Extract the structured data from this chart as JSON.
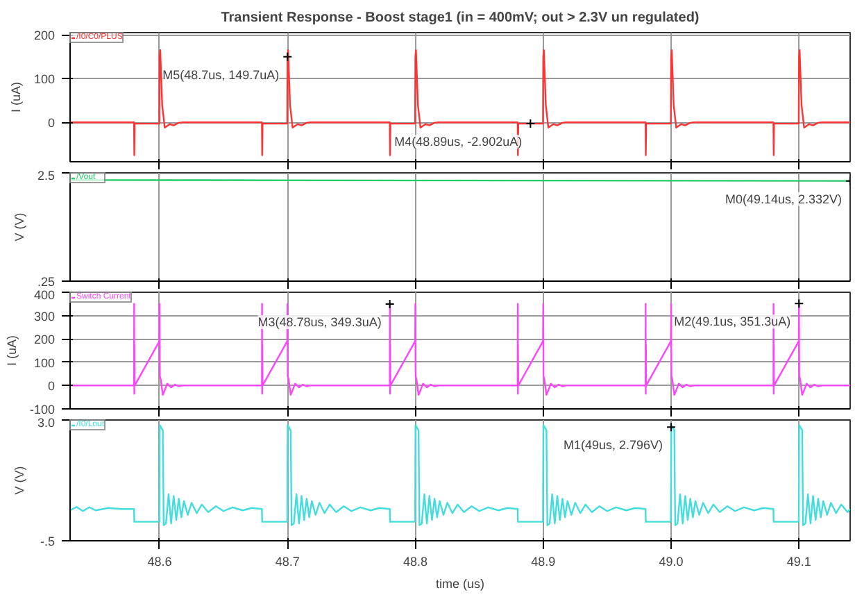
{
  "chart_data": [
    {
      "type": "line",
      "title": "Transient Response - Boost stage1 (in = 400mV; out > 2.3V un regulated)",
      "ylabel": "I (uA)",
      "xlim": [
        48.53,
        49.14
      ],
      "xticks": [
        48.6,
        48.7,
        48.8,
        48.9,
        49.0,
        49.1
      ],
      "ylim": [
        -90,
        205
      ],
      "yticks": [
        0,
        100,
        200
      ],
      "tick_labels": "y",
      "grid": true,
      "legend": "top left",
      "annotations": [
        {
          "text": "M5(48.7us, 149.7uA)",
          "x": 48.7,
          "y": 149.7
        },
        {
          "text": "M4(48.89us, -2.902uA)",
          "x": 48.89,
          "y": -2.902
        }
      ],
      "series": [
        {
          "name": "/I0/C0/PLUS",
          "color": "#ff3333",
          "x": [
            48.53,
            48.58,
            48.5802,
            48.5805,
            48.5998,
            48.6,
            48.6005,
            48.602,
            48.604,
            48.608,
            48.611,
            48.615,
            48.618,
            48.68,
            48.6802,
            48.6805,
            48.6998,
            48.7,
            48.7005,
            48.702,
            48.704,
            48.708,
            48.711,
            48.715,
            48.718,
            48.78,
            48.7802,
            48.7805,
            48.7998,
            48.8,
            48.8005,
            48.802,
            48.804,
            48.808,
            48.811,
            48.815,
            48.818,
            48.88,
            48.8802,
            48.8805,
            48.8998,
            48.9,
            48.9005,
            48.902,
            48.904,
            48.908,
            48.911,
            48.915,
            48.918,
            48.98,
            48.9802,
            48.9805,
            48.9998,
            49.0,
            49.0005,
            49.002,
            49.004,
            49.008,
            49.011,
            49.015,
            49.018,
            49.08,
            49.0802,
            49.0805,
            49.0998,
            49.1,
            49.1005,
            49.102,
            49.104,
            49.108,
            49.111,
            49.115,
            49.118,
            49.14
          ],
          "values": [
            0,
            0,
            -75,
            -3,
            -3,
            150,
            165,
            40,
            -12,
            -4,
            -7,
            -1,
            0,
            0,
            -75,
            -3,
            -3,
            150,
            165,
            40,
            -12,
            -4,
            -7,
            -1,
            0,
            0,
            -75,
            -3,
            -3,
            150,
            165,
            40,
            -12,
            -4,
            -7,
            -1,
            0,
            0,
            -75,
            -3,
            -3,
            150,
            165,
            40,
            -12,
            -4,
            -7,
            -1,
            0,
            0,
            -75,
            -3,
            -3,
            150,
            165,
            40,
            -12,
            -4,
            -7,
            -1,
            0,
            0,
            -75,
            -3,
            -3,
            150,
            165,
            40,
            -12,
            -4,
            -7,
            -1,
            0,
            0
          ]
        }
      ]
    },
    {
      "type": "line",
      "ylabel": "V (V)",
      "xlim": [
        48.53,
        49.14
      ],
      "xticks": [
        48.6,
        48.7,
        48.8,
        48.9,
        49.0,
        49.1
      ],
      "ylim": [
        0.25,
        2.5
      ],
      "yticks": [
        2.5,
        {
          "value": 0.25,
          "label": ".25"
        }
      ],
      "tick_labels": "y",
      "grid": true,
      "legend": "top left",
      "annotations": [
        {
          "text": "M0(49.14us, 2.332V)",
          "x": 49.14,
          "y": 2.332
        }
      ],
      "series": [
        {
          "name": "/Vout",
          "color": "#22cc66",
          "x": [
            48.53,
            49.14
          ],
          "values": [
            2.35,
            2.332
          ]
        }
      ]
    },
    {
      "type": "line",
      "ylabel": "I (uA)",
      "xlim": [
        48.53,
        49.14
      ],
      "xticks": [
        48.6,
        48.7,
        48.8,
        48.9,
        49.0,
        49.1
      ],
      "ylim": [
        -100,
        400
      ],
      "yticks": [
        -100,
        0,
        100,
        200,
        300,
        400
      ],
      "tick_labels": "y",
      "grid": true,
      "legend": "top left",
      "annotations": [
        {
          "text": "M3(48.78us, 349.3uA)",
          "x": 48.78,
          "y": 349.3
        },
        {
          "text": "M2(49.1us, 351.3uA)",
          "x": 49.1,
          "y": 351.3
        }
      ],
      "series": [
        {
          "name": "Switch Current",
          "color": "#ff44ff",
          "x": [
            48.53,
            48.58,
            48.5801,
            48.5802,
            48.5803,
            48.5805,
            48.5998,
            48.6,
            48.6002,
            48.6008,
            48.6025,
            48.606,
            48.609,
            48.612,
            48.615,
            48.618,
            48.68,
            48.6801,
            48.6802,
            48.6803,
            48.6805,
            48.6998,
            48.7,
            48.7002,
            48.7008,
            48.7025,
            48.706,
            48.709,
            48.712,
            48.715,
            48.718,
            48.78,
            48.7801,
            48.7802,
            48.7803,
            48.7805,
            48.7998,
            48.8,
            48.8002,
            48.8008,
            48.8025,
            48.806,
            48.809,
            48.812,
            48.815,
            48.818,
            48.88,
            48.8801,
            48.8802,
            48.8803,
            48.8805,
            48.8998,
            48.9,
            48.9002,
            48.9008,
            48.9025,
            48.906,
            48.909,
            48.912,
            48.915,
            48.918,
            48.98,
            48.9801,
            48.9802,
            48.9803,
            48.9805,
            48.9998,
            49.0,
            49.0002,
            49.0008,
            49.0025,
            49.006,
            49.009,
            49.012,
            49.015,
            49.018,
            49.08,
            49.0801,
            49.0802,
            49.0803,
            49.0805,
            49.0998,
            49.1,
            49.1002,
            49.1008,
            49.1025,
            49.106,
            49.109,
            49.112,
            49.115,
            49.118,
            49.14
          ],
          "values": [
            0,
            0,
            350,
            -35,
            175,
            0,
            190,
            350,
            40,
            30,
            -40,
            8,
            -8,
            4,
            -3,
            0,
            0,
            350,
            -35,
            175,
            0,
            190,
            350,
            40,
            30,
            -40,
            8,
            -8,
            4,
            -3,
            0,
            0,
            350,
            -35,
            175,
            0,
            190,
            350,
            40,
            30,
            -40,
            8,
            -8,
            4,
            -3,
            0,
            0,
            350,
            -35,
            175,
            0,
            190,
            350,
            40,
            30,
            -40,
            8,
            -8,
            4,
            -3,
            0,
            0,
            350,
            -35,
            175,
            0,
            190,
            350,
            40,
            30,
            -40,
            8,
            -8,
            4,
            -3,
            0,
            0,
            350,
            -35,
            175,
            0,
            190,
            350,
            40,
            30,
            -40,
            8,
            -8,
            4,
            -3,
            0,
            0
          ]
        }
      ]
    },
    {
      "type": "line",
      "xlabel": "time (us)",
      "ylabel": "V (V)",
      "xlim": [
        48.53,
        49.14
      ],
      "xticks": [
        {
          "value": 48.6,
          "label": "48.6"
        },
        {
          "value": 48.7,
          "label": "48.7"
        },
        {
          "value": 48.8,
          "label": "48.8"
        },
        {
          "value": 48.9,
          "label": "48.9"
        },
        {
          "value": 49.0,
          "label": "49.0"
        },
        {
          "value": 49.1,
          "label": "49.1"
        }
      ],
      "ylim": [
        -0.5,
        3.0
      ],
      "yticks": [
        {
          "value": 3.0,
          "label": "3.0"
        },
        {
          "value": -0.5,
          "label": "-.5"
        }
      ],
      "grid": true,
      "legend": "top left",
      "annotations": [
        {
          "text": "M1(49us, 2.796V)",
          "x": 49.0,
          "y": 2.796
        }
      ],
      "series": [
        {
          "name": "/I0/Lout",
          "color": "#44dddd",
          "x": [
            48.53,
            48.535,
            48.54,
            48.545,
            48.55,
            48.56,
            48.57,
            48.58,
            48.5802,
            48.5998,
            48.6001,
            48.6025,
            48.6032,
            48.605,
            48.607,
            48.609,
            48.611,
            48.613,
            48.615,
            48.617,
            48.619,
            48.622,
            48.625,
            48.629,
            48.633,
            48.638,
            48.644,
            48.65,
            48.657,
            48.665,
            48.672,
            48.68,
            48.6802,
            48.6998,
            48.7001,
            48.7025,
            48.7032,
            48.705,
            48.707,
            48.709,
            48.711,
            48.713,
            48.715,
            48.717,
            48.719,
            48.722,
            48.725,
            48.729,
            48.733,
            48.738,
            48.744,
            48.75,
            48.757,
            48.765,
            48.772,
            48.78,
            48.7802,
            48.7998,
            48.8001,
            48.8025,
            48.8032,
            48.805,
            48.807,
            48.809,
            48.811,
            48.813,
            48.815,
            48.817,
            48.819,
            48.822,
            48.825,
            48.829,
            48.833,
            48.838,
            48.844,
            48.85,
            48.857,
            48.865,
            48.872,
            48.88,
            48.8802,
            48.8998,
            48.9001,
            48.9025,
            48.9032,
            48.905,
            48.907,
            48.909,
            48.911,
            48.913,
            48.915,
            48.917,
            48.919,
            48.922,
            48.925,
            48.929,
            48.933,
            48.938,
            48.944,
            48.95,
            48.957,
            48.965,
            48.972,
            48.98,
            48.9802,
            48.9998,
            49.0001,
            49.0025,
            49.0032,
            49.005,
            49.007,
            49.009,
            49.011,
            49.013,
            49.015,
            49.017,
            49.019,
            49.022,
            49.025,
            49.029,
            49.033,
            49.038,
            49.044,
            49.05,
            49.057,
            49.065,
            49.072,
            49.08,
            49.0802,
            49.0998,
            49.1001,
            49.1025,
            49.1032,
            49.105,
            49.107,
            49.109,
            49.111,
            49.113,
            49.115,
            49.117,
            49.119,
            49.122,
            49.125,
            49.129,
            49.133,
            49.138,
            49.14
          ],
          "values": [
            0.38,
            0.48,
            0.36,
            0.47,
            0.38,
            0.45,
            0.42,
            0.42,
            0.05,
            0.05,
            2.85,
            2.7,
            -0.05,
            0,
            0.85,
            0,
            0.8,
            0.1,
            0.72,
            0.18,
            0.65,
            0.25,
            0.6,
            0.3,
            0.55,
            0.33,
            0.5,
            0.36,
            0.47,
            0.38,
            0.45,
            0.42,
            0.05,
            0.05,
            2.85,
            2.7,
            -0.05,
            0,
            0.85,
            0,
            0.8,
            0.1,
            0.72,
            0.18,
            0.65,
            0.25,
            0.6,
            0.3,
            0.55,
            0.33,
            0.5,
            0.36,
            0.47,
            0.38,
            0.45,
            0.42,
            0.05,
            0.05,
            2.85,
            2.7,
            -0.05,
            0,
            0.85,
            0,
            0.8,
            0.1,
            0.72,
            0.18,
            0.65,
            0.25,
            0.6,
            0.3,
            0.55,
            0.33,
            0.5,
            0.36,
            0.47,
            0.38,
            0.45,
            0.42,
            0.05,
            0.05,
            2.85,
            2.7,
            -0.05,
            0,
            0.85,
            0,
            0.8,
            0.1,
            0.72,
            0.18,
            0.65,
            0.25,
            0.6,
            0.3,
            0.55,
            0.33,
            0.5,
            0.36,
            0.47,
            0.38,
            0.45,
            0.42,
            0.05,
            0.05,
            2.85,
            2.7,
            -0.05,
            0,
            0.85,
            0,
            0.8,
            0.1,
            0.72,
            0.18,
            0.65,
            0.25,
            0.6,
            0.3,
            0.55,
            0.33,
            0.5,
            0.36,
            0.47,
            0.38,
            0.45,
            0.42,
            0.05,
            0.05,
            2.85,
            2.7,
            -0.05,
            0,
            0.85,
            0,
            0.8,
            0.1,
            0.72,
            0.18,
            0.65,
            0.25,
            0.6,
            0.3,
            0.55,
            0.33,
            0.42
          ]
        }
      ]
    }
  ]
}
